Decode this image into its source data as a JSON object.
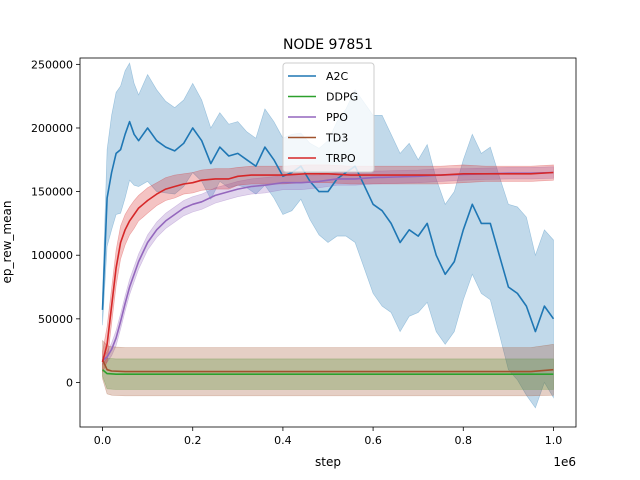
{
  "chart_data": {
    "type": "line",
    "title": "NODE 97851",
    "xlabel": "step",
    "ylabel": "ep_rew_mean",
    "x_offset_label": "1e6",
    "xlim": [
      -0.05,
      1.05
    ],
    "ylim": [
      -35000,
      255000
    ],
    "x_ticks": [
      0.0,
      0.2,
      0.4,
      0.6,
      0.8,
      1.0
    ],
    "x_tick_labels": [
      "0.0",
      "0.2",
      "0.4",
      "0.6",
      "0.8",
      "1.0"
    ],
    "y_ticks": [
      0,
      50000,
      100000,
      150000,
      200000,
      250000
    ],
    "y_tick_labels": [
      "0",
      "50000",
      "100000",
      "150000",
      "200000",
      "250000"
    ],
    "legend_position": "top-center",
    "series": [
      {
        "name": "A2C",
        "color": "#1f77b4",
        "x": [
          0.0,
          0.01,
          0.02,
          0.03,
          0.04,
          0.05,
          0.06,
          0.07,
          0.08,
          0.1,
          0.12,
          0.14,
          0.16,
          0.18,
          0.2,
          0.22,
          0.24,
          0.26,
          0.28,
          0.3,
          0.32,
          0.34,
          0.36,
          0.38,
          0.4,
          0.42,
          0.44,
          0.46,
          0.48,
          0.5,
          0.52,
          0.54,
          0.56,
          0.58,
          0.6,
          0.62,
          0.64,
          0.66,
          0.68,
          0.7,
          0.72,
          0.74,
          0.76,
          0.78,
          0.8,
          0.82,
          0.84,
          0.86,
          0.88,
          0.9,
          0.92,
          0.94,
          0.96,
          0.98,
          1.0
        ],
        "values": [
          57000,
          145000,
          165000,
          180000,
          183000,
          195000,
          205000,
          195000,
          190000,
          200000,
          190000,
          185000,
          182000,
          188000,
          200000,
          190000,
          172000,
          185000,
          178000,
          180000,
          175000,
          170000,
          185000,
          175000,
          162000,
          165000,
          170000,
          158000,
          150000,
          150000,
          160000,
          165000,
          170000,
          155000,
          140000,
          135000,
          125000,
          110000,
          120000,
          115000,
          125000,
          100000,
          85000,
          95000,
          120000,
          140000,
          125000,
          125000,
          100000,
          75000,
          70000,
          60000,
          40000,
          60000,
          50000
        ],
        "band_half_width": [
          12000,
          38000,
          45000,
          48000,
          50000,
          50000,
          46000,
          40000,
          36000,
          42000,
          40000,
          36000,
          34000,
          34000,
          35000,
          32000,
          28000,
          27000,
          25000,
          25000,
          22000,
          22000,
          30000,
          30000,
          30000,
          30000,
          26000,
          30000,
          34000,
          40000,
          45000,
          50000,
          60000,
          65000,
          70000,
          75000,
          70000,
          70000,
          68000,
          60000,
          62000,
          60000,
          55000,
          55000,
          55000,
          55000,
          55000,
          60000,
          62000,
          65000,
          68000,
          70000,
          60000,
          60000,
          62000
        ]
      },
      {
        "name": "DDPG",
        "color": "#2ca02c",
        "x": [
          0.0,
          0.01,
          0.03,
          0.06,
          0.1,
          0.2,
          0.3,
          0.4,
          0.5,
          0.6,
          0.7,
          0.8,
          0.9,
          1.0
        ],
        "values": [
          10000,
          7000,
          6500,
          6500,
          6500,
          6500,
          6500,
          6500,
          6500,
          6500,
          6500,
          6500,
          6500,
          6500
        ],
        "band_half_width": [
          5000,
          12000,
          12000,
          12000,
          12000,
          12000,
          12000,
          12000,
          12000,
          12000,
          12000,
          12000,
          12000,
          12000
        ]
      },
      {
        "name": "PPO",
        "color": "#9467bd",
        "x": [
          0.0,
          0.01,
          0.02,
          0.03,
          0.04,
          0.05,
          0.06,
          0.08,
          0.1,
          0.12,
          0.14,
          0.16,
          0.18,
          0.2,
          0.22,
          0.25,
          0.28,
          0.3,
          0.33,
          0.36,
          0.4,
          0.44,
          0.48,
          0.52,
          0.56,
          0.6,
          0.65,
          0.7,
          0.75,
          0.8,
          0.85,
          0.9,
          0.95,
          1.0
        ],
        "values": [
          17000,
          20000,
          26000,
          35000,
          48000,
          62000,
          75000,
          95000,
          110000,
          120000,
          127000,
          132000,
          137000,
          140000,
          142000,
          147000,
          150000,
          152000,
          154000,
          155000,
          157000,
          157000,
          158000,
          160000,
          160000,
          161000,
          161500,
          162000,
          163000,
          163500,
          164000,
          164500,
          164500,
          165000
        ],
        "band_half_width": [
          3000,
          4000,
          5000,
          6000,
          6000,
          6000,
          6000,
          6000,
          6000,
          6000,
          6000,
          6000,
          6000,
          6000,
          6000,
          6000,
          6000,
          6000,
          6000,
          6000,
          5500,
          5500,
          5000,
          5000,
          5000,
          5000,
          5000,
          5000,
          5000,
          4500,
          4500,
          4500,
          4500,
          4500
        ]
      },
      {
        "name": "TD3",
        "color": "#a0522d",
        "x": [
          0.0,
          0.01,
          0.02,
          0.05,
          0.1,
          0.2,
          0.3,
          0.4,
          0.5,
          0.6,
          0.7,
          0.8,
          0.9,
          0.95,
          1.0
        ],
        "values": [
          18000,
          10000,
          9000,
          8500,
          8500,
          8500,
          8500,
          8500,
          8500,
          8500,
          8500,
          8500,
          8500,
          8500,
          10000
        ],
        "band_half_width": [
          15000,
          19000,
          19000,
          19000,
          19000,
          19000,
          19000,
          19000,
          19000,
          19000,
          19000,
          19000,
          19000,
          19000,
          20000
        ]
      },
      {
        "name": "TRPO",
        "color": "#d62728",
        "x": [
          0.0,
          0.01,
          0.02,
          0.03,
          0.04,
          0.05,
          0.06,
          0.07,
          0.08,
          0.09,
          0.1,
          0.12,
          0.14,
          0.16,
          0.18,
          0.2,
          0.22,
          0.25,
          0.28,
          0.3,
          0.33,
          0.36,
          0.4,
          0.45,
          0.5,
          0.55,
          0.6,
          0.65,
          0.7,
          0.75,
          0.8,
          0.85,
          0.9,
          0.95,
          1.0
        ],
        "values": [
          16000,
          30000,
          60000,
          90000,
          110000,
          120000,
          127000,
          132000,
          137000,
          140000,
          143000,
          148000,
          152000,
          154000,
          156000,
          157000,
          159000,
          160000,
          160000,
          162000,
          163000,
          163000,
          163000,
          164000,
          164000,
          163000,
          163000,
          163000,
          163000,
          163000,
          164000,
          164000,
          164000,
          164000,
          165000
        ],
        "band_half_width": [
          8000,
          14000,
          14000,
          14000,
          13000,
          12000,
          11000,
          11000,
          10000,
          10000,
          10000,
          9000,
          9000,
          9000,
          8000,
          8000,
          8000,
          8000,
          8000,
          7000,
          7000,
          7000,
          7000,
          7000,
          7000,
          7000,
          7000,
          7000,
          7000,
          7000,
          7000,
          6000,
          6000,
          6000,
          6000
        ]
      }
    ]
  }
}
